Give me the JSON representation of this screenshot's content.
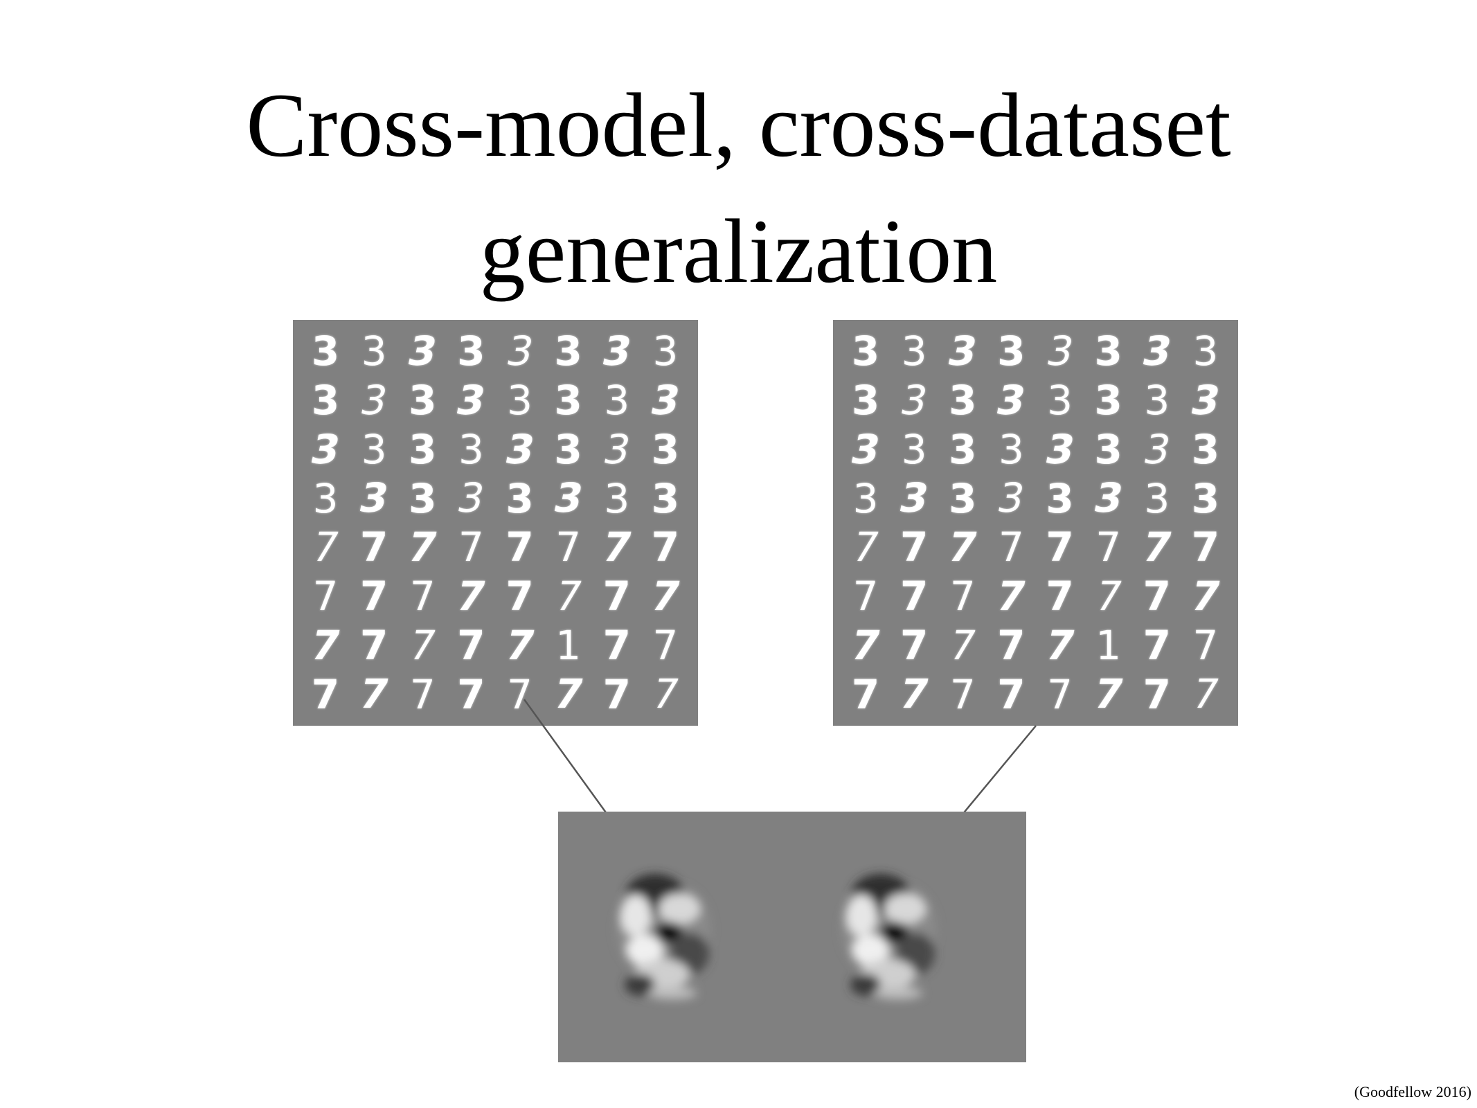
{
  "title_line1": "Cross-model, cross-dataset",
  "title_line2": "generalization",
  "credit": "(Goodfellow 2016)",
  "digit_grid": [
    [
      "3",
      "3",
      "3",
      "3",
      "3",
      "3",
      "3",
      "3"
    ],
    [
      "3",
      "3",
      "3",
      "3",
      "3",
      "3",
      "3",
      "3"
    ],
    [
      "3",
      "3",
      "3",
      "3",
      "3",
      "3",
      "3",
      "3"
    ],
    [
      "3",
      "3",
      "3",
      "3",
      "3",
      "3",
      "3",
      "3"
    ],
    [
      "7",
      "7",
      "7",
      "7",
      "7",
      "7",
      "7",
      "7"
    ],
    [
      "7",
      "7",
      "7",
      "7",
      "7",
      "7",
      "7",
      "7"
    ],
    [
      "7",
      "7",
      "7",
      "7",
      "7",
      "1",
      "7",
      "7"
    ],
    [
      "7",
      "7",
      "7",
      "7",
      "7",
      "7",
      "7",
      "7"
    ]
  ],
  "colors": {
    "panel_gray": "#808080",
    "digit_white": "#ffffff",
    "arrow": "#555555"
  }
}
